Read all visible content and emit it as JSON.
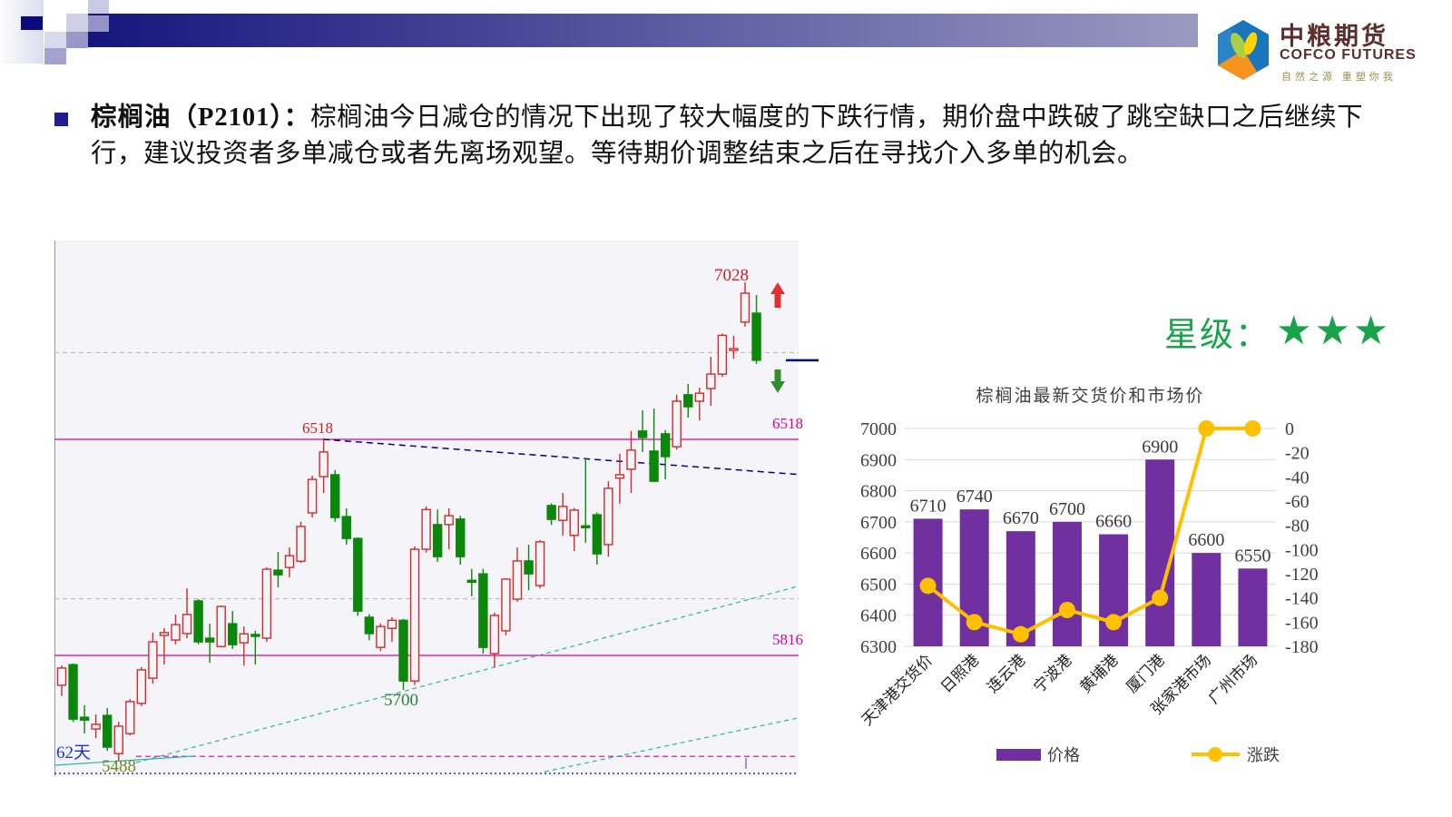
{
  "logo": {
    "title": "中粮期货",
    "subtitle": "COFCO FUTURES",
    "tagline": "自然之源 重塑你我"
  },
  "commentary": {
    "label": "棕榈油（P2101）：",
    "body": "棕榈油今日减仓的情况下出现了较大幅度的下跌行情，期价盘中跌破了跳空缺口之后继续下行，建议投资者多单减仓或者先离场观望。等待期价调整结束之后在寻找介入多单的机会。"
  },
  "rating": {
    "label": "星级：",
    "stars": "★★★",
    "color": "#19a34a"
  },
  "colors": {
    "candle_up": "#d42a2a",
    "candle_down": "#0b870b",
    "level_magenta": "#dd0099",
    "grid_gray": "#b3b3b3",
    "trend_blue": "#000099",
    "trend_cyan": "#2ab5a5",
    "bar_purple": "#7030A0",
    "line_yellow": "#FFC000",
    "chart_bg": "#f4f4f9"
  },
  "chart_data": [
    {
      "type": "candlestick",
      "days_label": "62天",
      "scale": {
        "price_a": 6518,
        "y_a": 219,
        "price_b": 5816,
        "y_b": 457
      },
      "candles": [
        [
          5719,
          5784,
          5684,
          5775
        ],
        [
          5786,
          5790,
          5600,
          5609
        ],
        [
          5615,
          5654,
          5562,
          5606
        ],
        [
          5577,
          5624,
          5547,
          5592
        ],
        [
          5621,
          5645,
          5506,
          5518
        ],
        [
          5497,
          5600,
          5474,
          5586
        ],
        [
          5562,
          5674,
          5556,
          5666
        ],
        [
          5660,
          5778,
          5651,
          5769
        ],
        [
          5742,
          5890,
          5724,
          5860
        ],
        [
          5881,
          5905,
          5786,
          5890
        ],
        [
          5866,
          5949,
          5852,
          5916
        ],
        [
          5887,
          6034,
          5872,
          5949
        ],
        [
          5993,
          5999,
          5852,
          5860
        ],
        [
          5872,
          5919,
          5792,
          5860
        ],
        [
          5845,
          5978,
          5842,
          5975
        ],
        [
          5919,
          5960,
          5837,
          5851
        ],
        [
          5857,
          5910,
          5783,
          5886
        ],
        [
          5884,
          5896,
          5786,
          5878
        ],
        [
          5872,
          6102,
          5860,
          6096
        ],
        [
          6093,
          6152,
          6037,
          6078
        ],
        [
          6102,
          6167,
          6070,
          6140
        ],
        [
          6122,
          6250,
          6117,
          6235
        ],
        [
          6279,
          6400,
          6264,
          6388
        ],
        [
          6397,
          6521,
          6344,
          6477
        ],
        [
          6403,
          6418,
          6250,
          6264
        ],
        [
          6267,
          6294,
          6176,
          6196
        ],
        [
          6196,
          6200,
          5945,
          5960
        ],
        [
          5940,
          5950,
          5865,
          5887
        ],
        [
          5842,
          5920,
          5830,
          5910
        ],
        [
          5904,
          5940,
          5860,
          5930
        ],
        [
          5930,
          5935,
          5704,
          5733
        ],
        [
          5733,
          6170,
          5720,
          6161
        ],
        [
          6161,
          6300,
          6150,
          6290
        ],
        [
          6241,
          6290,
          6120,
          6137
        ],
        [
          6241,
          6294,
          6161,
          6270
        ],
        [
          6259,
          6270,
          6111,
          6137
        ],
        [
          6060,
          6097,
          6008,
          6055
        ],
        [
          6081,
          6097,
          5822,
          5842
        ],
        [
          5822,
          5955,
          5777,
          5946
        ],
        [
          5896,
          6067,
          5881,
          6064
        ],
        [
          5999,
          6167,
          5990,
          6123
        ],
        [
          6123,
          6176,
          6028,
          6081
        ],
        [
          6043,
          6191,
          6034,
          6185
        ],
        [
          6303,
          6310,
          6240,
          6258
        ],
        [
          6255,
          6344,
          6205,
          6300
        ],
        [
          6206,
          6295,
          6155,
          6288
        ],
        [
          6237,
          6456,
          6182,
          6234
        ],
        [
          6273,
          6280,
          6111,
          6146
        ],
        [
          6176,
          6382,
          6137,
          6359
        ],
        [
          6392,
          6471,
          6309,
          6403
        ],
        [
          6421,
          6545,
          6344,
          6483
        ],
        [
          6545,
          6612,
          6477,
          6524
        ],
        [
          6480,
          6618,
          6380,
          6382
        ],
        [
          6536,
          6548,
          6388,
          6462
        ],
        [
          6494,
          6663,
          6485,
          6642
        ],
        [
          6663,
          6698,
          6589,
          6624
        ],
        [
          6642,
          6686,
          6580,
          6668
        ],
        [
          6683,
          6786,
          6627,
          6730
        ],
        [
          6730,
          6862,
          6721,
          6856
        ],
        [
          6810,
          6854,
          6780,
          6813
        ],
        [
          6899,
          7028,
          6884,
          6993
        ],
        [
          6928,
          6987,
          6763,
          6775
        ]
      ],
      "h_lines": [
        {
          "price": 6518,
          "color": "#dd0099",
          "dash": "",
          "width": 1.3,
          "x1": 0
        },
        {
          "price": 5816,
          "color": "#dd0099",
          "dash": "",
          "width": 1.3,
          "x1": 0
        },
        {
          "price": 5488,
          "color": "#dd0099",
          "dash": "6,4",
          "width": 1.2,
          "x1": 90
        },
        {
          "price": 6800,
          "color": "#b3b3b3",
          "dash": "5,4",
          "width": 1,
          "x1": 0
        },
        {
          "price": 6000,
          "color": "#b3b3b3",
          "dash": "5,4",
          "width": 1,
          "x1": 0
        }
      ],
      "trend_lines": [
        {
          "x1": 296,
          "p1": 6518,
          "x2": 820,
          "p2": 6404,
          "color": "#000099",
          "dash": "7,5",
          "width": 1.5
        },
        {
          "x1": 90,
          "p1": 5468,
          "x2": 820,
          "p2": 6041,
          "color": "#2ab5a5",
          "dash": "5,4",
          "width": 1.2
        },
        {
          "x1": 540,
          "p1": 5438,
          "x2": 820,
          "p2": 5613,
          "color": "#2ab5a5",
          "dash": "5,4",
          "width": 1.2
        },
        {
          "x1": 0,
          "p1": 5459,
          "x2": 155,
          "p2": 5489,
          "color": "#2ab5a5",
          "dash": "",
          "width": 1.2
        }
      ],
      "labels": [
        {
          "text": "7028",
          "x": 746,
          "y": 44,
          "color": "#cc2222",
          "anchor": "middle",
          "size": 19
        },
        {
          "text": "6518",
          "x": 290,
          "y": 212,
          "color": "#cc2222",
          "anchor": "middle",
          "size": 17
        },
        {
          "text": "6518",
          "x": 791,
          "y": 207,
          "color": "#dd0099",
          "anchor": "start",
          "size": 17
        },
        {
          "text": "5816",
          "x": 791,
          "y": 445,
          "color": "#dd0099",
          "anchor": "start",
          "size": 17
        },
        {
          "text": "5700",
          "x": 382,
          "y": 512,
          "color": "#2e7d32",
          "anchor": "middle",
          "size": 19
        },
        {
          "text": "5488",
          "x": 52,
          "y": 585,
          "color": "#6b8e23",
          "anchor": "start",
          "size": 19
        },
        {
          "text": "62天",
          "x": 2,
          "y": 570,
          "color": "#2233cc",
          "anchor": "start",
          "size": 19
        }
      ],
      "arrows": [
        {
          "dir": "up",
          "cx": 797,
          "y1": 46,
          "y2": 74,
          "color": "#e03030"
        },
        {
          "dir": "down",
          "cx": 797,
          "y1": 168,
          "y2": 142,
          "color": "#2f8f2f"
        }
      ],
      "current_price_marker": {
        "price": 6775,
        "x1": 806,
        "x2": 842,
        "color": "#000080"
      },
      "axis_tick": {
        "x": 762,
        "y1": 570,
        "y2": 582
      }
    },
    {
      "type": "bar+line",
      "title": "棕榈油最新交货价和市场价",
      "categories": [
        "天津港交货价",
        "日照港",
        "连云港",
        "宁波港",
        "黄埔港",
        "厦门港",
        "张家港市场",
        "广州市场"
      ],
      "series": [
        {
          "name": "价格",
          "type": "bar",
          "color": "#7030A0",
          "axis": "left",
          "values": [
            6710,
            6740,
            6670,
            6700,
            6660,
            6900,
            6600,
            6550
          ]
        },
        {
          "name": "涨跌",
          "type": "line",
          "color": "#FFC000",
          "axis": "right",
          "values": [
            -130,
            -160,
            -170,
            -150,
            -160,
            -140,
            0,
            0
          ]
        }
      ],
      "left_axis": {
        "min": 6300,
        "max": 7000,
        "ticks": [
          7000,
          6900,
          6800,
          6700,
          6600,
          6500,
          6400,
          6300
        ]
      },
      "right_axis": {
        "min": -180,
        "max": 0,
        "ticks": [
          0,
          -20,
          -40,
          -60,
          -80,
          -100,
          -120,
          -140,
          -160,
          -180
        ]
      },
      "legend": [
        "价格",
        "涨跌"
      ],
      "grid": true,
      "legend_position": "bottom"
    }
  ]
}
